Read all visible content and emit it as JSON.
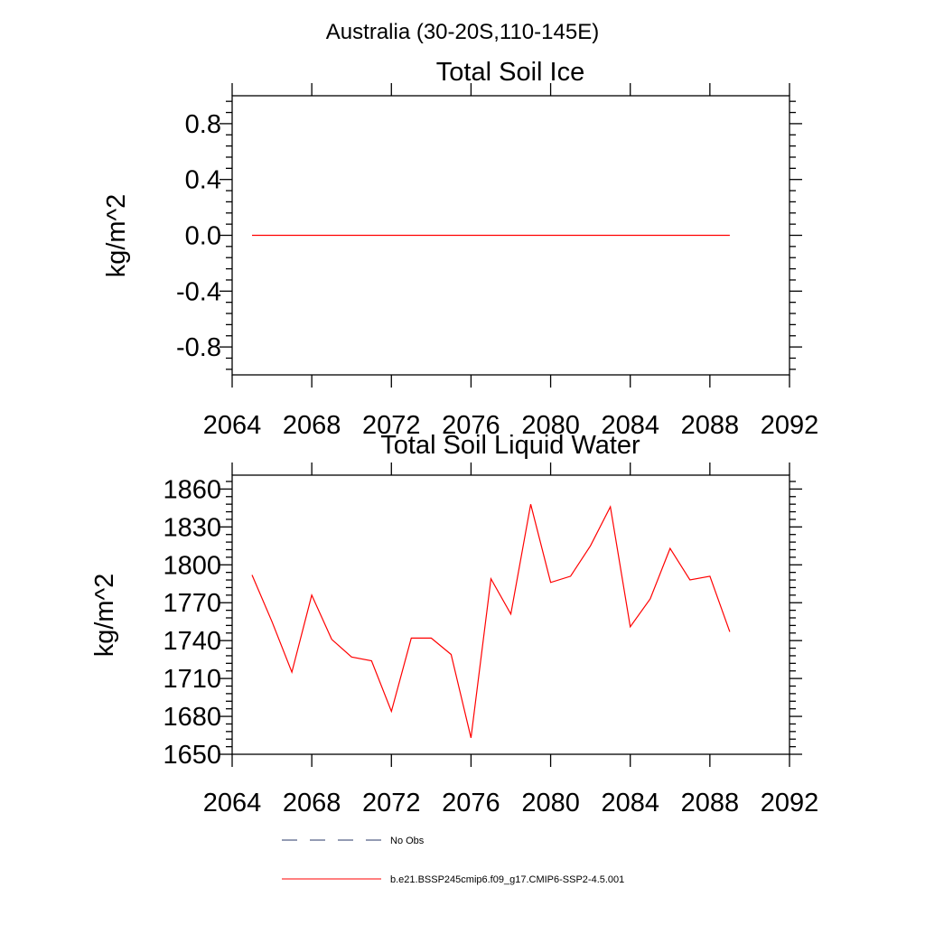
{
  "page_title": "Australia (30-20S,110-145E)",
  "chart_data": [
    {
      "type": "line",
      "title": "Total Soil Ice",
      "ylabel": "kg/m^2",
      "xlabel": "",
      "xlim": [
        2064,
        2092
      ],
      "ylim": [
        -1.0,
        1.0
      ],
      "xticks": [
        2064,
        2068,
        2072,
        2076,
        2080,
        2084,
        2088,
        2092
      ],
      "xtick_labels": [
        "2064",
        "2068",
        "2072",
        "2076",
        "2080",
        "2084",
        "2088",
        "2092"
      ],
      "yticks": [
        -0.8,
        -0.4,
        0.0,
        0.4,
        0.8
      ],
      "ytick_labels": [
        "-0.8",
        "-0.4",
        "0.0",
        "0.4",
        "0.8"
      ],
      "grid": false,
      "series": [
        {
          "name": "b.e21.BSSP245cmip6.f09_g17.CMIP6-SSP2-4.5.001",
          "color": "#ff0000",
          "x": [
            2065,
            2066,
            2067,
            2068,
            2069,
            2070,
            2071,
            2072,
            2073,
            2074,
            2075,
            2076,
            2077,
            2078,
            2079,
            2080,
            2081,
            2082,
            2083,
            2084,
            2085,
            2086,
            2087,
            2088,
            2089
          ],
          "y": [
            0,
            0,
            0,
            0,
            0,
            0,
            0,
            0,
            0,
            0,
            0,
            0,
            0,
            0,
            0,
            0,
            0,
            0,
            0,
            0,
            0,
            0,
            0,
            0,
            0
          ]
        }
      ]
    },
    {
      "type": "line",
      "title": "Total Soil Liquid Water",
      "ylabel": "kg/m^2",
      "xlabel": "",
      "xlim": [
        2064,
        2092
      ],
      "ylim": [
        1650,
        1871
      ],
      "xticks": [
        2064,
        2068,
        2072,
        2076,
        2080,
        2084,
        2088,
        2092
      ],
      "xtick_labels": [
        "2064",
        "2068",
        "2072",
        "2076",
        "2080",
        "2084",
        "2088",
        "2092"
      ],
      "yticks": [
        1650,
        1680,
        1710,
        1740,
        1770,
        1800,
        1830,
        1860
      ],
      "ytick_labels": [
        "1650",
        "1680",
        "1710",
        "1740",
        "1770",
        "1800",
        "1830",
        "1860"
      ],
      "grid": false,
      "series": [
        {
          "name": "b.e21.BSSP245cmip6.f09_g17.CMIP6-SSP2-4.5.001",
          "color": "#ff0000",
          "x": [
            2065,
            2066,
            2067,
            2068,
            2069,
            2070,
            2071,
            2072,
            2073,
            2074,
            2075,
            2076,
            2077,
            2078,
            2079,
            2080,
            2081,
            2082,
            2083,
            2084,
            2085,
            2086,
            2087,
            2088,
            2089
          ],
          "y": [
            1792,
            1755,
            1715,
            1776,
            1741,
            1727,
            1724,
            1684,
            1742,
            1742,
            1729,
            1663,
            1789,
            1761,
            1848,
            1786,
            1791,
            1815,
            1846,
            1751,
            1773,
            1813,
            1788,
            1791,
            1747
          ]
        }
      ]
    }
  ],
  "legend": {
    "placement": "bottom",
    "items": [
      {
        "label": "No Obs",
        "color": "#2a3a6a",
        "dash": "dashed"
      },
      {
        "label": "b.e21.BSSP245cmip6.f09_g17.CMIP6-SSP2-4.5.001",
        "color": "#ff0000",
        "dash": "solid"
      }
    ]
  }
}
